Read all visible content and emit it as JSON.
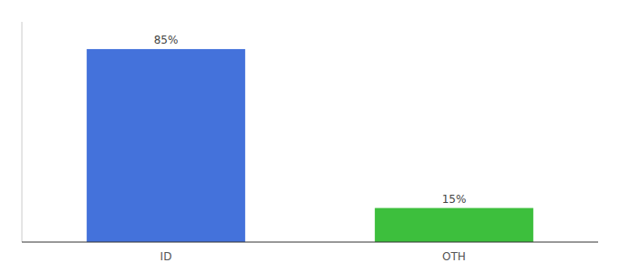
{
  "chart_data": {
    "type": "bar",
    "categories": [
      "ID",
      "OTH"
    ],
    "values": [
      85,
      15
    ],
    "value_labels": [
      "85%",
      "15%"
    ],
    "colors": [
      "#4472db",
      "#3dbf3d"
    ],
    "ylim": [
      0,
      97
    ],
    "data_labels": true,
    "tick_labels": "x"
  }
}
